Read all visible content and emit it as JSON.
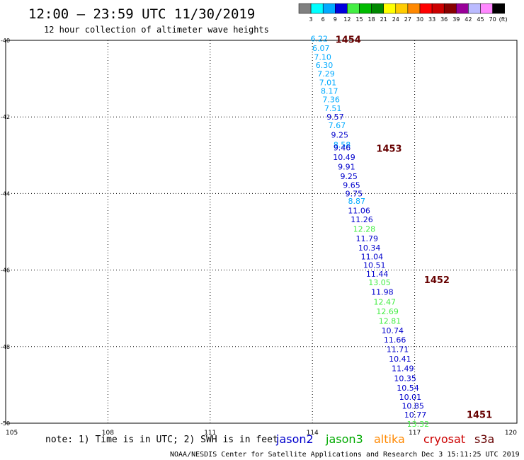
{
  "header": {
    "title": "12:00 – 23:59 UTC 11/30/2019",
    "subtitle": "12 hour collection of altimeter wave heights"
  },
  "colorbar": {
    "unit": "(ft)",
    "bins": [
      {
        "label": "3",
        "color": "#808080"
      },
      {
        "label": "6",
        "color": "#00ffff"
      },
      {
        "label": "9",
        "color": "#00aaff"
      },
      {
        "label": "12",
        "color": "#0000dd"
      },
      {
        "label": "15",
        "color": "#44ee44"
      },
      {
        "label": "18",
        "color": "#00bb00"
      },
      {
        "label": "21",
        "color": "#008800"
      },
      {
        "label": "24",
        "color": "#ffff00"
      },
      {
        "label": "27",
        "color": "#ffcc00"
      },
      {
        "label": "30",
        "color": "#ff8800"
      },
      {
        "label": "33",
        "color": "#ff0000"
      },
      {
        "label": "36",
        "color": "#cc0000"
      },
      {
        "label": "39",
        "color": "#880000"
      },
      {
        "label": "42",
        "color": "#990099"
      },
      {
        "label": "45",
        "color": "#bbbbff"
      },
      {
        "label": "70",
        "color": "#ff88ff"
      },
      {
        "label": "",
        "color": "#000000"
      }
    ]
  },
  "footer": {
    "note": "note:  1) Time is in UTC;  2) SWH is in feet",
    "credit": "NOAA/NESDIS Center for Satellite Applications and Research     Dec  3 15:11:25 UTC 2019",
    "legend": [
      {
        "label": "jason2",
        "color": "#0000cc"
      },
      {
        "label": "jason3",
        "color": "#00aa00"
      },
      {
        "label": "altika",
        "color": "#ff8800"
      },
      {
        "label": "cryosat",
        "color": "#cc0000"
      },
      {
        "label": "s3a",
        "color": "#660000"
      }
    ]
  },
  "chart_data": {
    "type": "scatter",
    "title": "12:00 – 23:59 UTC 11/30/2019",
    "subtitle": "12 hour collection of altimeter wave heights",
    "x_ticks": [
      "105",
      "108",
      "111",
      "114",
      "117",
      "120"
    ],
    "y_ticks": [
      "-40",
      "-42",
      "-44",
      "-46",
      "-48",
      "-50"
    ],
    "xlim": [
      105,
      120
    ],
    "ylim": [
      -50,
      -40
    ],
    "grid": true,
    "time_labels": [
      {
        "text": "1454",
        "lon": 115.05,
        "lat": -39.97,
        "color": "#660000"
      },
      {
        "text": "1453",
        "lon": 116.25,
        "lat": -42.82,
        "color": "#660000"
      },
      {
        "text": "1452",
        "lon": 117.65,
        "lat": -46.25,
        "color": "#660000"
      },
      {
        "text": "1451",
        "lon": 118.9,
        "lat": -49.77,
        "color": "#660000"
      }
    ],
    "points": [
      {
        "lon": 114.2,
        "lat": -39.95,
        "swh": "6.22",
        "color": "#00aaff"
      },
      {
        "lon": 114.25,
        "lat": -40.2,
        "swh": "6.07",
        "color": "#00aaff"
      },
      {
        "lon": 114.3,
        "lat": -40.43,
        "swh": "7.10",
        "color": "#00aaff"
      },
      {
        "lon": 114.35,
        "lat": -40.65,
        "swh": "6.30",
        "color": "#00aaff"
      },
      {
        "lon": 114.4,
        "lat": -40.87,
        "swh": "7.29",
        "color": "#00aaff"
      },
      {
        "lon": 114.45,
        "lat": -41.1,
        "swh": "7.01",
        "color": "#00aaff"
      },
      {
        "lon": 114.5,
        "lat": -41.32,
        "swh": "8.17",
        "color": "#00aaff"
      },
      {
        "lon": 114.55,
        "lat": -41.54,
        "swh": "7.36",
        "color": "#00aaff"
      },
      {
        "lon": 114.6,
        "lat": -41.77,
        "swh": "7.51",
        "color": "#00aaff"
      },
      {
        "lon": 114.67,
        "lat": -42.0,
        "swh": "9.57",
        "color": "#0000cc"
      },
      {
        "lon": 114.72,
        "lat": -42.22,
        "swh": "7.67",
        "color": "#00aaff"
      },
      {
        "lon": 114.8,
        "lat": -42.47,
        "swh": "9.25",
        "color": "#0000cc"
      },
      {
        "lon": 114.87,
        "lat": -42.73,
        "swh": "8.58",
        "color": "#00aaff"
      },
      {
        "lon": 114.87,
        "lat": -42.8,
        "swh": "9.46",
        "color": "#0000cc"
      },
      {
        "lon": 114.93,
        "lat": -43.05,
        "swh": "10.49",
        "color": "#0000cc"
      },
      {
        "lon": 115.0,
        "lat": -43.3,
        "swh": "9.91",
        "color": "#0000cc"
      },
      {
        "lon": 115.07,
        "lat": -43.55,
        "swh": "9.25",
        "color": "#0000cc"
      },
      {
        "lon": 115.15,
        "lat": -43.78,
        "swh": "9.65",
        "color": "#0000cc"
      },
      {
        "lon": 115.22,
        "lat": -44.0,
        "swh": "9.75",
        "color": "#0000cc"
      },
      {
        "lon": 115.3,
        "lat": -44.2,
        "swh": "8.87",
        "color": "#00aaff"
      },
      {
        "lon": 115.37,
        "lat": -44.45,
        "swh": "11.06",
        "color": "#0000cc"
      },
      {
        "lon": 115.45,
        "lat": -44.68,
        "swh": "11.26",
        "color": "#0000cc"
      },
      {
        "lon": 115.52,
        "lat": -44.93,
        "swh": "12.28",
        "color": "#44ee44"
      },
      {
        "lon": 115.6,
        "lat": -45.18,
        "swh": "11.79",
        "color": "#0000cc"
      },
      {
        "lon": 115.67,
        "lat": -45.42,
        "swh": "10.34",
        "color": "#0000cc"
      },
      {
        "lon": 115.75,
        "lat": -45.65,
        "swh": "11.04",
        "color": "#0000cc"
      },
      {
        "lon": 115.82,
        "lat": -45.87,
        "swh": "10.51",
        "color": "#0000cc"
      },
      {
        "lon": 115.9,
        "lat": -46.1,
        "swh": "11.44",
        "color": "#0000cc"
      },
      {
        "lon": 115.97,
        "lat": -46.32,
        "swh": "13.05",
        "color": "#44ee44"
      },
      {
        "lon": 116.05,
        "lat": -46.57,
        "swh": "11.98",
        "color": "#0000cc"
      },
      {
        "lon": 116.12,
        "lat": -46.83,
        "swh": "12.47",
        "color": "#44ee44"
      },
      {
        "lon": 116.2,
        "lat": -47.08,
        "swh": "12.69",
        "color": "#44ee44"
      },
      {
        "lon": 116.27,
        "lat": -47.33,
        "swh": "12.81",
        "color": "#44ee44"
      },
      {
        "lon": 116.35,
        "lat": -47.58,
        "swh": "10.74",
        "color": "#0000cc"
      },
      {
        "lon": 116.42,
        "lat": -47.82,
        "swh": "11.66",
        "color": "#0000cc"
      },
      {
        "lon": 116.5,
        "lat": -48.07,
        "swh": "11.71",
        "color": "#0000cc"
      },
      {
        "lon": 116.57,
        "lat": -48.32,
        "swh": "10.41",
        "color": "#0000cc"
      },
      {
        "lon": 116.65,
        "lat": -48.57,
        "swh": "11.49",
        "color": "#0000cc"
      },
      {
        "lon": 116.72,
        "lat": -48.83,
        "swh": "10.35",
        "color": "#0000cc"
      },
      {
        "lon": 116.8,
        "lat": -49.08,
        "swh": "10.54",
        "color": "#0000cc"
      },
      {
        "lon": 116.87,
        "lat": -49.32,
        "swh": "10.01",
        "color": "#0000cc"
      },
      {
        "lon": 116.95,
        "lat": -49.55,
        "swh": "10.85",
        "color": "#0000cc"
      },
      {
        "lon": 117.02,
        "lat": -49.78,
        "swh": "10.77",
        "color": "#0000cc"
      },
      {
        "lon": 117.1,
        "lat": -50.02,
        "swh": "13.32",
        "color": "#44ee44"
      }
    ]
  }
}
